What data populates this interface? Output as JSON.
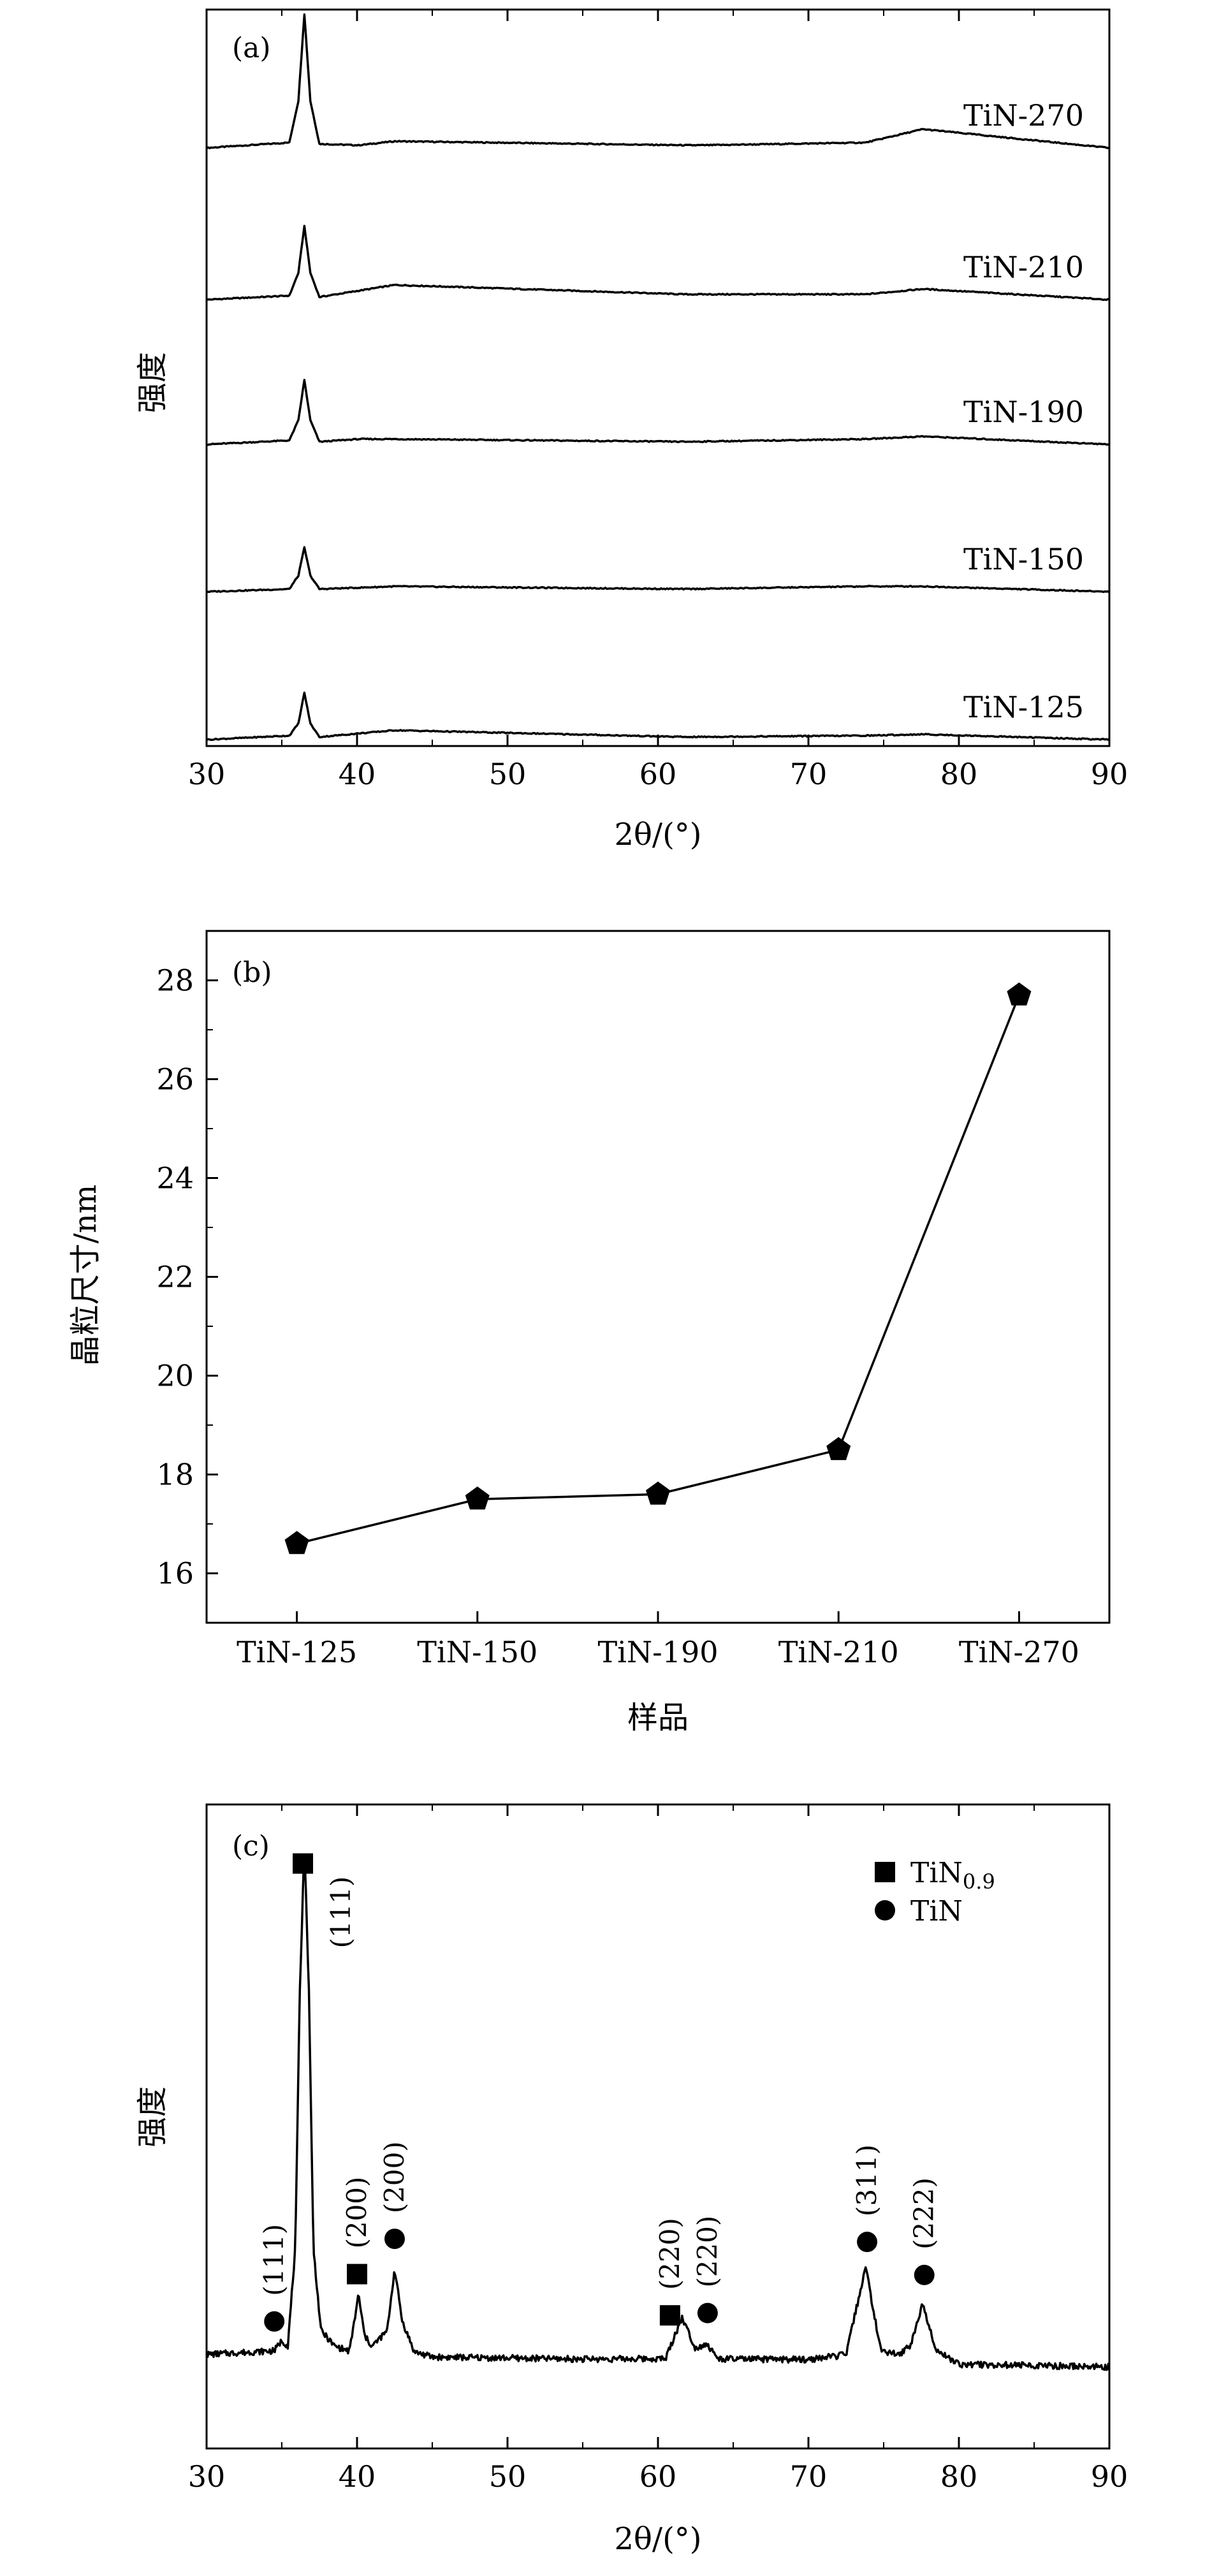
{
  "chart_data": [
    {
      "panel": "(a)",
      "type": "line",
      "xlabel": "2θ/(°)",
      "ylabel": "强度",
      "xlim": [
        30,
        90
      ],
      "xticks": [
        "30",
        "40",
        "50",
        "60",
        "70",
        "80",
        "90"
      ],
      "series": [
        {
          "name": "TiN-270",
          "x": [
            30,
            35.5,
            36.1,
            36.5,
            36.9,
            37.5,
            40.1,
            42.5,
            61.8,
            63.0,
            73.8,
            77.6,
            90
          ],
          "y": [
            0,
            0.04,
            0.35,
            1.0,
            0.35,
            0.03,
            0.02,
            0.05,
            0.02,
            0.02,
            0.04,
            0.14,
            0
          ]
        },
        {
          "name": "TiN-210",
          "x": [
            30,
            35.5,
            36.1,
            36.5,
            36.9,
            37.5,
            42.5,
            61.8,
            73.8,
            77.6,
            90
          ],
          "y": [
            0,
            0.03,
            0.2,
            0.55,
            0.2,
            0.02,
            0.11,
            0.04,
            0.04,
            0.08,
            0
          ]
        },
        {
          "name": "TiN-190",
          "x": [
            30,
            35.5,
            36.1,
            36.5,
            36.9,
            37.5,
            40.1,
            42.5,
            61.8,
            73.8,
            77.6,
            90
          ],
          "y": [
            0,
            0.03,
            0.18,
            0.48,
            0.18,
            0.02,
            0.04,
            0.04,
            0.02,
            0.04,
            0.06,
            0
          ]
        },
        {
          "name": "TiN-150",
          "x": [
            30,
            35.5,
            36.1,
            36.5,
            36.9,
            37.5,
            40.1,
            42.5,
            61.8,
            73.8,
            77.6,
            90
          ],
          "y": [
            0,
            0.02,
            0.12,
            0.33,
            0.12,
            0.02,
            0.03,
            0.04,
            0.02,
            0.04,
            0.04,
            0
          ]
        },
        {
          "name": "TiN-125",
          "x": [
            30,
            35.5,
            36.1,
            36.5,
            36.9,
            37.5,
            42.5,
            61.8,
            73.8,
            77.6,
            90
          ],
          "y": [
            0,
            0.03,
            0.12,
            0.35,
            0.12,
            0.02,
            0.07,
            0.02,
            0.03,
            0.04,
            0
          ]
        }
      ]
    },
    {
      "panel": "(b)",
      "type": "line",
      "xlabel": "样品",
      "ylabel": "晶粒尺寸/nm",
      "ylim": [
        15,
        29
      ],
      "yticks": [
        "16",
        "18",
        "20",
        "22",
        "24",
        "26",
        "28"
      ],
      "categories": [
        "TiN-125",
        "TiN-150",
        "TiN-190",
        "TiN-210",
        "TiN-270"
      ],
      "values": [
        16.6,
        17.5,
        17.6,
        18.5,
        27.7
      ],
      "marker": "pentagon"
    },
    {
      "panel": "(c)",
      "type": "line",
      "xlabel": "2θ/(°)",
      "ylabel": "强度",
      "xlim": [
        30,
        90
      ],
      "xticks": [
        "30",
        "40",
        "50",
        "60",
        "70",
        "80",
        "90"
      ],
      "legend": [
        {
          "marker": "square",
          "label": "TiN",
          "sub": "0.9"
        },
        {
          "marker": "circle",
          "label": "TiN"
        }
      ],
      "series": [
        {
          "x": [
            30,
            34.5,
            35.0,
            35.4,
            35.9,
            36.2,
            36.5,
            36.8,
            37.1,
            37.6,
            38.5,
            39.5,
            40.1,
            40.5,
            41.0,
            42.0,
            42.5,
            43.0,
            43.8,
            45,
            55,
            60.5,
            61.6,
            62.5,
            63.2,
            64.0,
            70,
            72.5,
            73.8,
            74.8,
            76.0,
            76.8,
            77.6,
            78.5,
            80,
            90
          ],
          "y": [
            0.012,
            0.02,
            0.04,
            0.03,
            0.22,
            0.72,
            1.0,
            0.72,
            0.22,
            0.06,
            0.03,
            0.02,
            0.13,
            0.05,
            0.03,
            0.06,
            0.18,
            0.08,
            0.02,
            0.01,
            0.008,
            0.01,
            0.09,
            0.03,
            0.04,
            0.01,
            0.01,
            0.02,
            0.19,
            0.03,
            0.02,
            0.04,
            0.12,
            0.03,
            0.003,
            0
          ]
        }
      ],
      "annotations": [
        {
          "label": "(111)",
          "x": 34.5,
          "marker": "circle"
        },
        {
          "label": "(111)",
          "x": 36.4,
          "marker": "square"
        },
        {
          "label": "(200)",
          "x": 40.0,
          "marker": "square"
        },
        {
          "label": "(200)",
          "x": 42.5,
          "marker": "circle"
        },
        {
          "label": "(220)",
          "x": 60.8,
          "marker": "square"
        },
        {
          "label": "(220)",
          "x": 63.3,
          "marker": "circle"
        },
        {
          "label": "(311)",
          "x": 73.9,
          "marker": "circle"
        },
        {
          "label": "(222)",
          "x": 77.7,
          "marker": "circle"
        }
      ]
    }
  ]
}
